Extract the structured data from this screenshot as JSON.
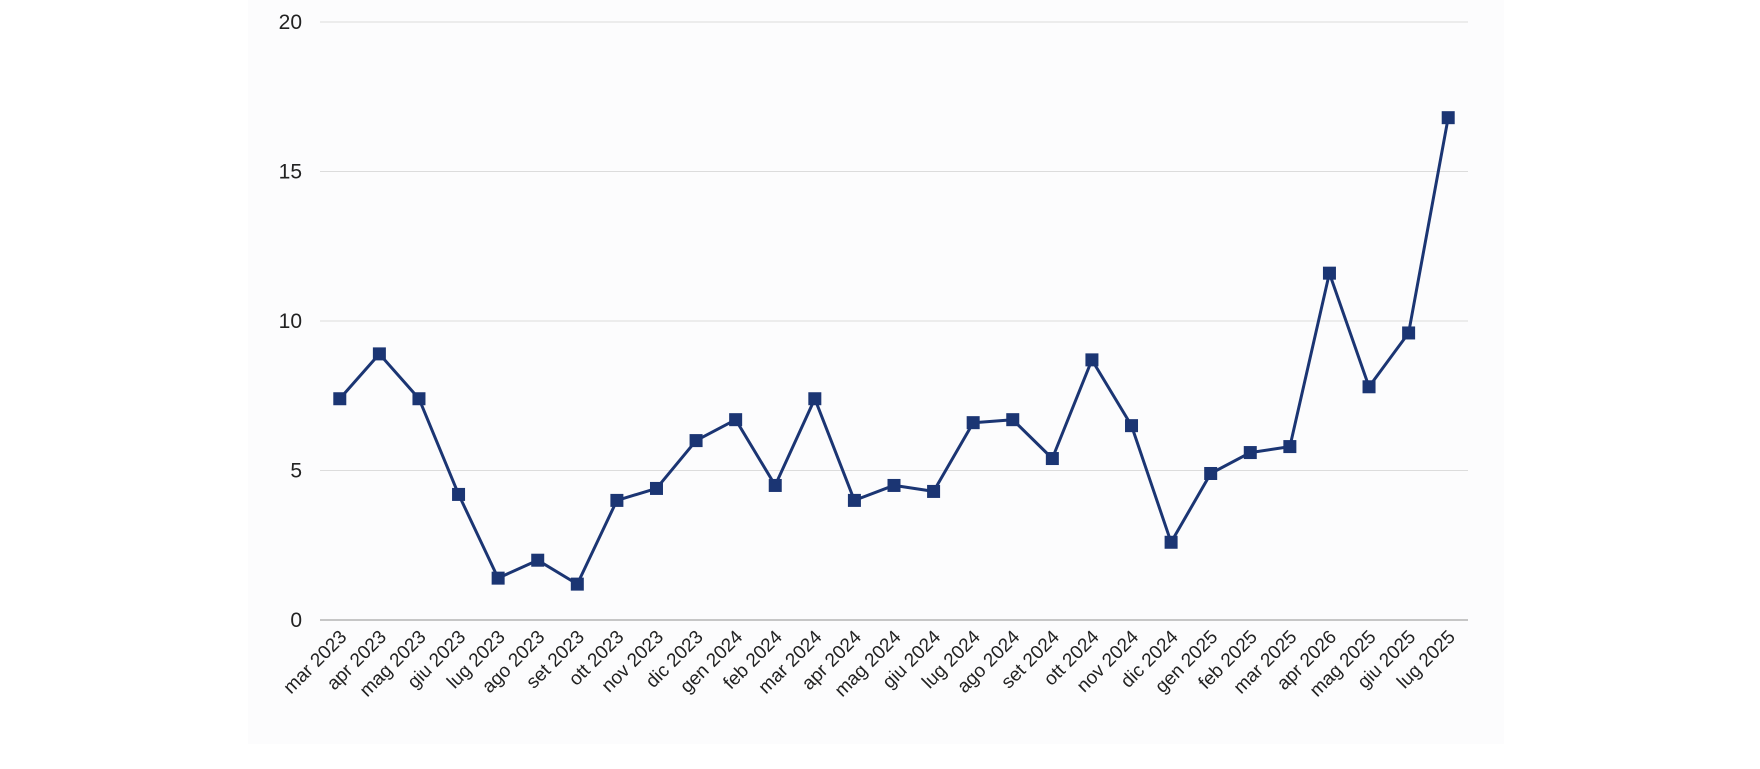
{
  "chart_data": {
    "type": "line",
    "categories": [
      "mar 2023",
      "apr 2023",
      "mag 2023",
      "giu 2023",
      "lug 2023",
      "ago 2023",
      "set 2023",
      "ott 2023",
      "nov 2023",
      "dic 2023",
      "gen 2024",
      "feb 2024",
      "mar 2024",
      "apr 2024",
      "mag 2024",
      "giu 2024",
      "lug 2024",
      "ago 2024",
      "set 2024",
      "ott 2024",
      "nov 2024",
      "dic 2024",
      "gen 2025",
      "feb 2025",
      "mar 2025",
      "apr 2026",
      "mag 2025",
      "giu 2025",
      "lug 2025"
    ],
    "series": [
      {
        "values": [
          7.4,
          8.9,
          7.4,
          4.2,
          1.4,
          2.0,
          1.2,
          4.0,
          4.4,
          6.0,
          6.7,
          4.5,
          7.4,
          4.0,
          4.5,
          4.3,
          6.6,
          6.7,
          5.4,
          8.7,
          6.5,
          2.6,
          4.9,
          5.6,
          5.8,
          11.6,
          7.8,
          9.6,
          16.8
        ],
        "color": "#1b3573",
        "marker": "square"
      }
    ],
    "ylim": [
      0,
      20
    ],
    "yticks": [
      "0",
      "5",
      "10",
      "15",
      "20"
    ],
    "grid": true,
    "legend": "none",
    "title": "",
    "xlabel": "",
    "ylabel": "",
    "colors": {
      "plot_background": "#fcfcfd",
      "gridline": "#dcdcdc",
      "axis": "#b3b3b3"
    }
  }
}
